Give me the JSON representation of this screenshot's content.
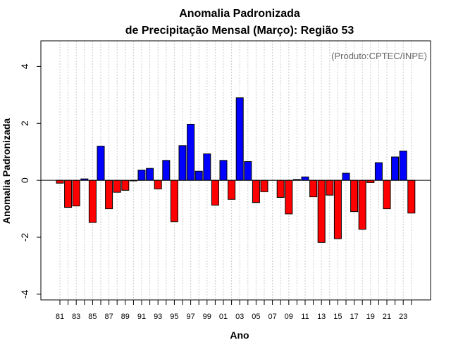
{
  "chart_data": {
    "type": "bar",
    "title_line1": "Anomalia Padronizada",
    "title_line2": "de Precipitação Mensal (Março): Região 53",
    "xlabel": "Ano",
    "ylabel": "Anomalia Padronizada",
    "annotation": "(Produto:CPTEC/INPE)",
    "ylim": [
      -4.2,
      4.9
    ],
    "yticks": [
      -4,
      -2,
      0,
      2,
      4
    ],
    "ytick_labels": [
      "-4",
      "-2",
      "0",
      "2",
      "4"
    ],
    "categories": [
      "1981",
      "1982",
      "1983",
      "1984",
      "1985",
      "1986",
      "1987",
      "1988",
      "1989",
      "1990",
      "1991",
      "1992",
      "1993",
      "1994",
      "1995",
      "1996",
      "1997",
      "1998",
      "1999",
      "2000",
      "2001",
      "2002",
      "2003",
      "2004",
      "2005",
      "2006",
      "2007",
      "2008",
      "2009",
      "2010",
      "2011",
      "2012",
      "2013",
      "2014",
      "2015",
      "2016",
      "2017",
      "2018",
      "2019",
      "2020",
      "2021",
      "2022",
      "2023",
      "2024"
    ],
    "xtick_labels": [
      "81",
      "",
      "83",
      "",
      "85",
      "",
      "87",
      "",
      "89",
      "",
      "91",
      "",
      "93",
      "",
      "95",
      "",
      "97",
      "",
      "99",
      "",
      "01",
      "",
      "03",
      "",
      "05",
      "",
      "07",
      "",
      "09",
      "",
      "11",
      "",
      "13",
      "",
      "15",
      "",
      "17",
      "",
      "19",
      "",
      "21",
      "",
      "23",
      ""
    ],
    "values": [
      -0.1,
      -0.95,
      -0.9,
      0.05,
      -1.48,
      1.2,
      -1.0,
      -0.42,
      -0.35,
      -0.02,
      0.36,
      0.42,
      -0.3,
      0.7,
      -1.45,
      1.22,
      1.97,
      0.32,
      0.93,
      -0.87,
      0.7,
      -0.67,
      2.9,
      0.66,
      -0.78,
      -0.4,
      0.0,
      -0.6,
      -1.18,
      0.03,
      0.12,
      -0.58,
      -2.18,
      -0.52,
      -2.05,
      0.25,
      -1.1,
      -1.72,
      -0.08,
      0.62,
      -1.0,
      0.82,
      1.03,
      -1.15
    ],
    "colors": {
      "positive": "#0000ff",
      "negative": "#ff0000",
      "grid": "#cccccc",
      "zero_line": "#000000"
    }
  }
}
